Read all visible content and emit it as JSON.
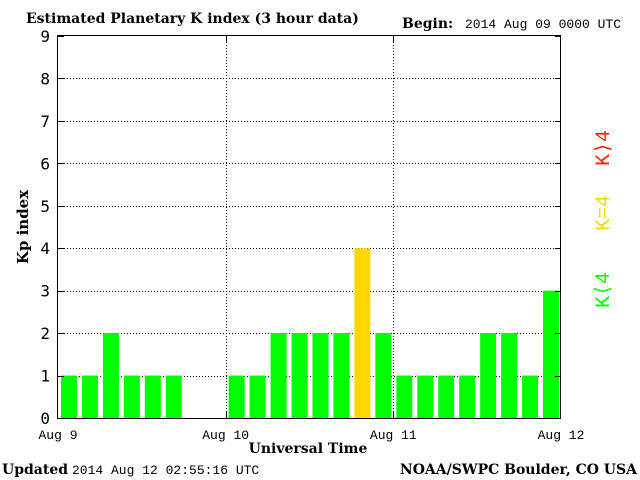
{
  "chart_data": {
    "type": "bar",
    "title": "Estimated Planetary K index (3 hour data)",
    "begin_label": "Begin:",
    "begin_value": "2014 Aug 09 0000 UTC",
    "xlabel": "Universal Time",
    "ylabel": "Kp index",
    "ylim": [
      0,
      9
    ],
    "yticks": [
      "0",
      "1",
      "2",
      "3",
      "4",
      "5",
      "6",
      "7",
      "8",
      "9"
    ],
    "xticks": [
      "Aug 9",
      "Aug 10",
      "Aug 11",
      "Aug 12"
    ],
    "grid": true,
    "interval_hours": 3,
    "values": [
      1,
      1,
      2,
      1,
      1,
      1,
      null,
      null,
      1,
      1,
      2,
      2,
      2,
      2,
      4,
      2,
      1,
      1,
      1,
      1,
      2,
      2,
      1,
      3
    ],
    "colors": {
      "below_4": "#00ff00",
      "equal_4": "#ffd700",
      "above_4": "#ff2200"
    },
    "legend": [
      {
        "label": "K⟩4",
        "color": "#ff2200"
      },
      {
        "label": "K=4",
        "color": "#ffd700"
      },
      {
        "label": "K⟨4",
        "color": "#00ff00"
      }
    ]
  },
  "footer": {
    "updated_label": "Updated",
    "updated_value": "2014 Aug 12 02:55:16 UTC",
    "source": "NOAA/SWPC Boulder, CO USA"
  }
}
